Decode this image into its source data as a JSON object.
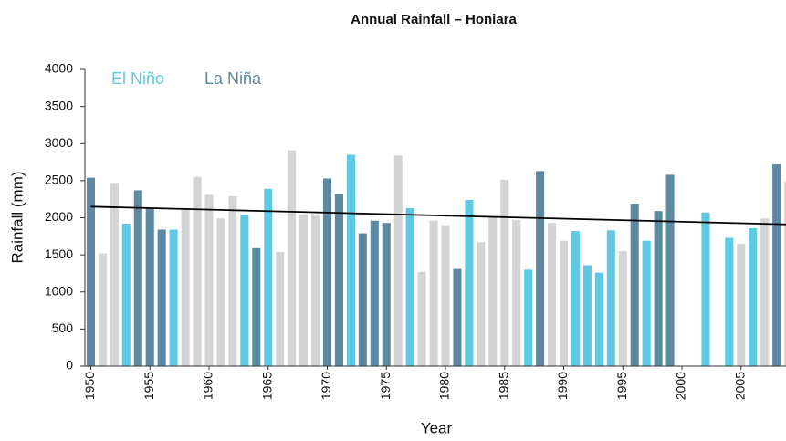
{
  "chart_data": {
    "type": "bar",
    "title": "Annual Rainfall – Honiara",
    "x_label": "Year",
    "y_label": "Rainfall (mm)",
    "x": [
      1950,
      1951,
      1952,
      1953,
      1954,
      1955,
      1956,
      1957,
      1958,
      1959,
      1960,
      1961,
      1962,
      1963,
      1964,
      1965,
      1966,
      1967,
      1968,
      1969,
      1970,
      1971,
      1972,
      1973,
      1974,
      1975,
      1976,
      1977,
      1978,
      1979,
      1980,
      1981,
      1982,
      1983,
      1984,
      1985,
      1986,
      1987,
      1988,
      1989,
      1990,
      1991,
      1992,
      1993,
      1994,
      1995,
      1996,
      1997,
      1998,
      1999,
      2000,
      2001,
      2002,
      2003,
      2004,
      2005,
      2006,
      2007,
      2008,
      2009
    ],
    "values": [
      2540,
      1520,
      2470,
      1920,
      2370,
      2130,
      1840,
      1840,
      2120,
      2550,
      2310,
      1990,
      2290,
      2040,
      1590,
      2390,
      1540,
      2910,
      2040,
      2050,
      2530,
      2320,
      2850,
      1790,
      1960,
      1930,
      2840,
      2130,
      1270,
      1960,
      1900,
      1310,
      2240,
      1670,
      2010,
      2510,
      1970,
      1300,
      2630,
      1930,
      1690,
      1820,
      1360,
      1260,
      1830,
      1550,
      2190,
      1690,
      2090,
      2580,
      null,
      null,
      2070,
      null,
      1730,
      1650,
      1860,
      1990,
      2720,
      2490
    ],
    "bar_colors": [
      "#5d89a3",
      "#d4d4d4",
      "#d4d4d4",
      "#5fc9e3",
      "#5d89a3",
      "#5d89a3",
      "#5d89a3",
      "#5fc9e3",
      "#d4d4d4",
      "#d4d4d4",
      "#d4d4d4",
      "#d4d4d4",
      "#d4d4d4",
      "#5fc9e3",
      "#5d89a3",
      "#5fc9e3",
      "#d4d4d4",
      "#d4d4d4",
      "#d4d4d4",
      "#d4d4d4",
      "#5d89a3",
      "#5d89a3",
      "#5fc9e3",
      "#5d89a3",
      "#5d89a3",
      "#5d89a3",
      "#d4d4d4",
      "#5fc9e3",
      "#d4d4d4",
      "#d4d4d4",
      "#d4d4d4",
      "#5d89a3",
      "#5fc9e3",
      "#d4d4d4",
      "#d4d4d4",
      "#d4d4d4",
      "#d4d4d4",
      "#5fc9e3",
      "#5d89a3",
      "#d4d4d4",
      "#d4d4d4",
      "#5fc9e3",
      "#5fc9e3",
      "#5fc9e3",
      "#5fc9e3",
      "#d4d4d4",
      "#5d89a3",
      "#5fc9e3",
      "#5d89a3",
      "#5d89a3",
      "#d4d4d4",
      "#d4d4d4",
      "#5fc9e3",
      "#d4d4d4",
      "#5fc9e3",
      "#d4d4d4",
      "#5fc9e3",
      "#d4d4d4",
      "#5d89a3",
      "#d4d4d4"
    ],
    "legend": [
      {
        "name": "El Niño",
        "color": "#5fc9e3"
      },
      {
        "name": "La Niña",
        "color": "#5d89a3"
      }
    ],
    "trend": {
      "x": [
        1950,
        2009
      ],
      "values": [
        2150,
        1910
      ],
      "color": "#000000"
    },
    "xlim": [
      1949.5,
      2008.8
    ],
    "xticks": [
      1950,
      1955,
      1960,
      1965,
      1970,
      1975,
      1980,
      1985,
      1990,
      1995,
      2000,
      2005
    ],
    "ylim": [
      0,
      4000
    ],
    "yticks": [
      0,
      500,
      1000,
      1500,
      2000,
      2500,
      3000,
      3500,
      4000
    ]
  }
}
